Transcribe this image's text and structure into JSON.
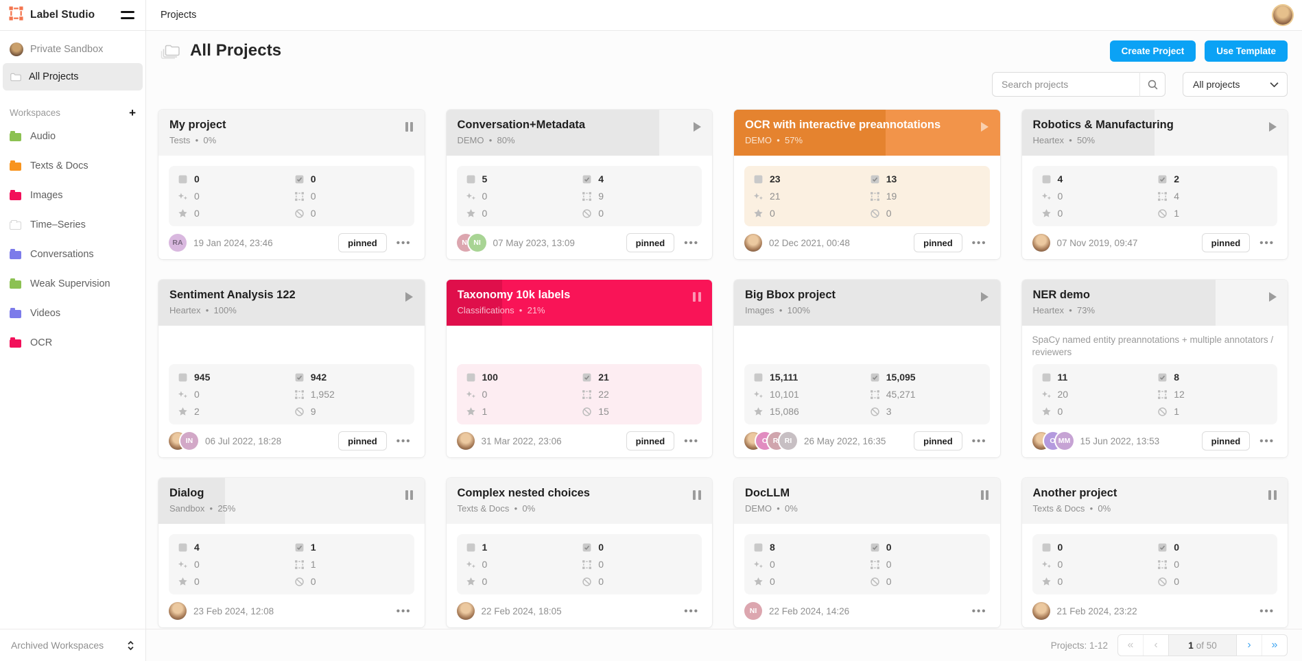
{
  "topbar": {
    "app_name": "Label Studio",
    "breadcrumb": "Projects"
  },
  "sidebar": {
    "user_item": "Private Sandbox",
    "all_projects": "All Projects",
    "workspaces_label": "Workspaces",
    "add_label": "+",
    "workspaces": [
      {
        "name": "Audio",
        "color": "#8cc152"
      },
      {
        "name": "Texts & Docs",
        "color": "#f8941e"
      },
      {
        "name": "Images",
        "color": "#f2105a"
      },
      {
        "name": "Time–Series",
        "color": "#ffffff",
        "outline": true
      },
      {
        "name": "Conversations",
        "color": "#7c7bea"
      },
      {
        "name": "Weak Supervision",
        "color": "#8cc152"
      },
      {
        "name": "Videos",
        "color": "#7c7bea"
      },
      {
        "name": "OCR",
        "color": "#f2105a"
      }
    ],
    "archived_label": "Archived Workspaces"
  },
  "header": {
    "title": "All Projects",
    "create_button": "Create Project",
    "template_button": "Use Template",
    "search_placeholder": "Search projects",
    "filter_value": "All projects"
  },
  "card_labels": {
    "pinned": "pinned"
  },
  "colors": {
    "accent_blue": "#0ba2f5",
    "logo_orange": "#f4764f",
    "themes": {
      "gray": {
        "base": "#f4f4f4",
        "fill": "#e7e7e7",
        "tint": "#f6f6f6",
        "title": "#1f1f1f",
        "sub": "#8f8f8f",
        "ctrl": "#9c9c9c"
      },
      "orange": {
        "base": "#f2944a",
        "fill": "#e5832f",
        "tint": "#fbf0e1",
        "title": "#ffffff",
        "sub": "rgba(255,255,255,0.78)",
        "ctrl": "rgba(255,255,255,0.55)"
      },
      "red": {
        "base": "#f91457",
        "fill": "#df0f4b",
        "tint": "#fdedf2",
        "title": "#ffffff",
        "sub": "rgba(255,255,255,0.72)",
        "ctrl": "rgba(255,255,255,0.55)"
      }
    }
  },
  "projects": [
    {
      "title": "My project",
      "workspace": "Tests",
      "percent": 0,
      "theme": "gray",
      "control": "pause",
      "pinned": true,
      "date": "19 Jan 2024, 23:46",
      "avatars": [
        {
          "type": "initials",
          "text": "RA",
          "bg": "#d9b8df",
          "fg": "#7a6880"
        }
      ],
      "stats": {
        "tasks": "0",
        "completed": "0",
        "predictions": "0",
        "annotations": "0",
        "ground_truths": "0",
        "skipped": "0"
      }
    },
    {
      "title": "Conversation+Metadata",
      "workspace": "DEMO",
      "percent": 80,
      "theme": "gray",
      "control": "play",
      "pinned": true,
      "date": "07 May 2023, 13:09",
      "avatars": [
        {
          "type": "initials",
          "text": "NI",
          "bg": "#dca6af",
          "fg": "#ffffff"
        },
        {
          "type": "initials",
          "text": "NI",
          "bg": "#a8d494",
          "fg": "#ffffff"
        }
      ],
      "stats": {
        "tasks": "5",
        "completed": "4",
        "predictions": "0",
        "annotations": "9",
        "ground_truths": "0",
        "skipped": "0"
      }
    },
    {
      "title": "OCR with interactive preannotations",
      "workspace": "DEMO",
      "percent": 57,
      "theme": "orange",
      "control": "play",
      "pinned": true,
      "date": "02 Dec 2021, 00:48",
      "avatars": [
        {
          "type": "photo"
        }
      ],
      "stats": {
        "tasks": "23",
        "completed": "13",
        "predictions": "21",
        "annotations": "19",
        "ground_truths": "0",
        "skipped": "0"
      }
    },
    {
      "title": "Robotics & Manufacturing",
      "workspace": "Heartex",
      "percent": 50,
      "theme": "gray",
      "control": "play",
      "pinned": true,
      "date": "07 Nov 2019, 09:47",
      "avatars": [
        {
          "type": "photo"
        }
      ],
      "stats": {
        "tasks": "4",
        "completed": "2",
        "predictions": "0",
        "annotations": "4",
        "ground_truths": "0",
        "skipped": "1"
      }
    },
    {
      "title": "Sentiment Analysis 122",
      "workspace": "Heartex",
      "percent": 100,
      "theme": "gray",
      "control": "play",
      "pinned": true,
      "date": "06 Jul 2022, 18:28",
      "avatars": [
        {
          "type": "photo"
        },
        {
          "type": "initials",
          "text": "IN",
          "bg": "#d2a8c7",
          "fg": "#ffffff"
        }
      ],
      "stats": {
        "tasks": "945",
        "completed": "942",
        "predictions": "0",
        "annotations": "1,952",
        "ground_truths": "2",
        "skipped": "9"
      }
    },
    {
      "title": "Taxonomy 10k labels",
      "workspace": "Classifications",
      "percent": 21,
      "theme": "red",
      "control": "pause",
      "pinned": true,
      "date": "31 Mar 2022, 23:06",
      "avatars": [
        {
          "type": "photo"
        }
      ],
      "stats": {
        "tasks": "100",
        "completed": "21",
        "predictions": "0",
        "annotations": "22",
        "ground_truths": "1",
        "skipped": "15"
      }
    },
    {
      "title": "Big Bbox project",
      "workspace": "Images",
      "percent": 100,
      "theme": "gray",
      "control": "play",
      "pinned": true,
      "date": "26 May 2022, 16:35",
      "avatars": [
        {
          "type": "photo"
        },
        {
          "type": "initials",
          "text": "O",
          "bg": "#e18cc0",
          "fg": "#ffffff"
        },
        {
          "type": "initials",
          "text": "RI",
          "bg": "#d0a5ad",
          "fg": "#ffffff"
        },
        {
          "type": "initials",
          "text": "RI",
          "bg": "#c7bfc3",
          "fg": "#ffffff"
        }
      ],
      "stats": {
        "tasks": "15,111",
        "completed": "15,095",
        "predictions": "10,101",
        "annotations": "45,271",
        "ground_truths": "15,086",
        "skipped": "3"
      }
    },
    {
      "title": "NER demo",
      "workspace": "Heartex",
      "percent": 73,
      "theme": "gray",
      "control": "play",
      "pinned": true,
      "date": "15 Jun 2022, 13:53",
      "description": "SpaCy named entity preannotations + multiple annotators / reviewers",
      "avatars": [
        {
          "type": "photo"
        },
        {
          "type": "initials",
          "text": "O",
          "bg": "#b49ade",
          "fg": "#ffffff"
        },
        {
          "type": "initials",
          "text": "MM",
          "bg": "#c6a3d4",
          "fg": "#ffffff"
        }
      ],
      "stats": {
        "tasks": "11",
        "completed": "8",
        "predictions": "20",
        "annotations": "12",
        "ground_truths": "0",
        "skipped": "1"
      }
    },
    {
      "title": "Dialog",
      "workspace": "Sandbox",
      "percent": 25,
      "theme": "gray",
      "control": "pause",
      "pinned": false,
      "date": "23 Feb 2024, 12:08",
      "avatars": [
        {
          "type": "photo"
        }
      ],
      "stats": {
        "tasks": "4",
        "completed": "1",
        "predictions": "0",
        "annotations": "1",
        "ground_truths": "0",
        "skipped": "0"
      }
    },
    {
      "title": "Complex nested choices",
      "workspace": "Texts & Docs",
      "percent": 0,
      "theme": "gray",
      "control": "pause",
      "pinned": false,
      "date": "22 Feb 2024, 18:05",
      "avatars": [
        {
          "type": "photo"
        }
      ],
      "stats": {
        "tasks": "1",
        "completed": "0",
        "predictions": "0",
        "annotations": "0",
        "ground_truths": "0",
        "skipped": "0"
      }
    },
    {
      "title": "DocLLM",
      "workspace": "DEMO",
      "percent": 0,
      "theme": "gray",
      "control": "pause",
      "pinned": false,
      "date": "22 Feb 2024, 14:26",
      "avatars": [
        {
          "type": "initials",
          "text": "NI",
          "bg": "#dca6af",
          "fg": "#ffffff"
        }
      ],
      "stats": {
        "tasks": "8",
        "completed": "0",
        "predictions": "0",
        "annotations": "0",
        "ground_truths": "0",
        "skipped": "0"
      }
    },
    {
      "title": "Another project",
      "workspace": "Texts & Docs",
      "percent": 0,
      "theme": "gray",
      "control": "pause",
      "pinned": false,
      "date": "21 Feb 2024, 23:22",
      "avatars": [
        {
          "type": "photo"
        }
      ],
      "stats": {
        "tasks": "0",
        "completed": "0",
        "predictions": "0",
        "annotations": "0",
        "ground_truths": "0",
        "skipped": "0"
      }
    }
  ],
  "pagination": {
    "summary": "Projects: 1-12",
    "current": "1",
    "of_label": "of 50"
  }
}
